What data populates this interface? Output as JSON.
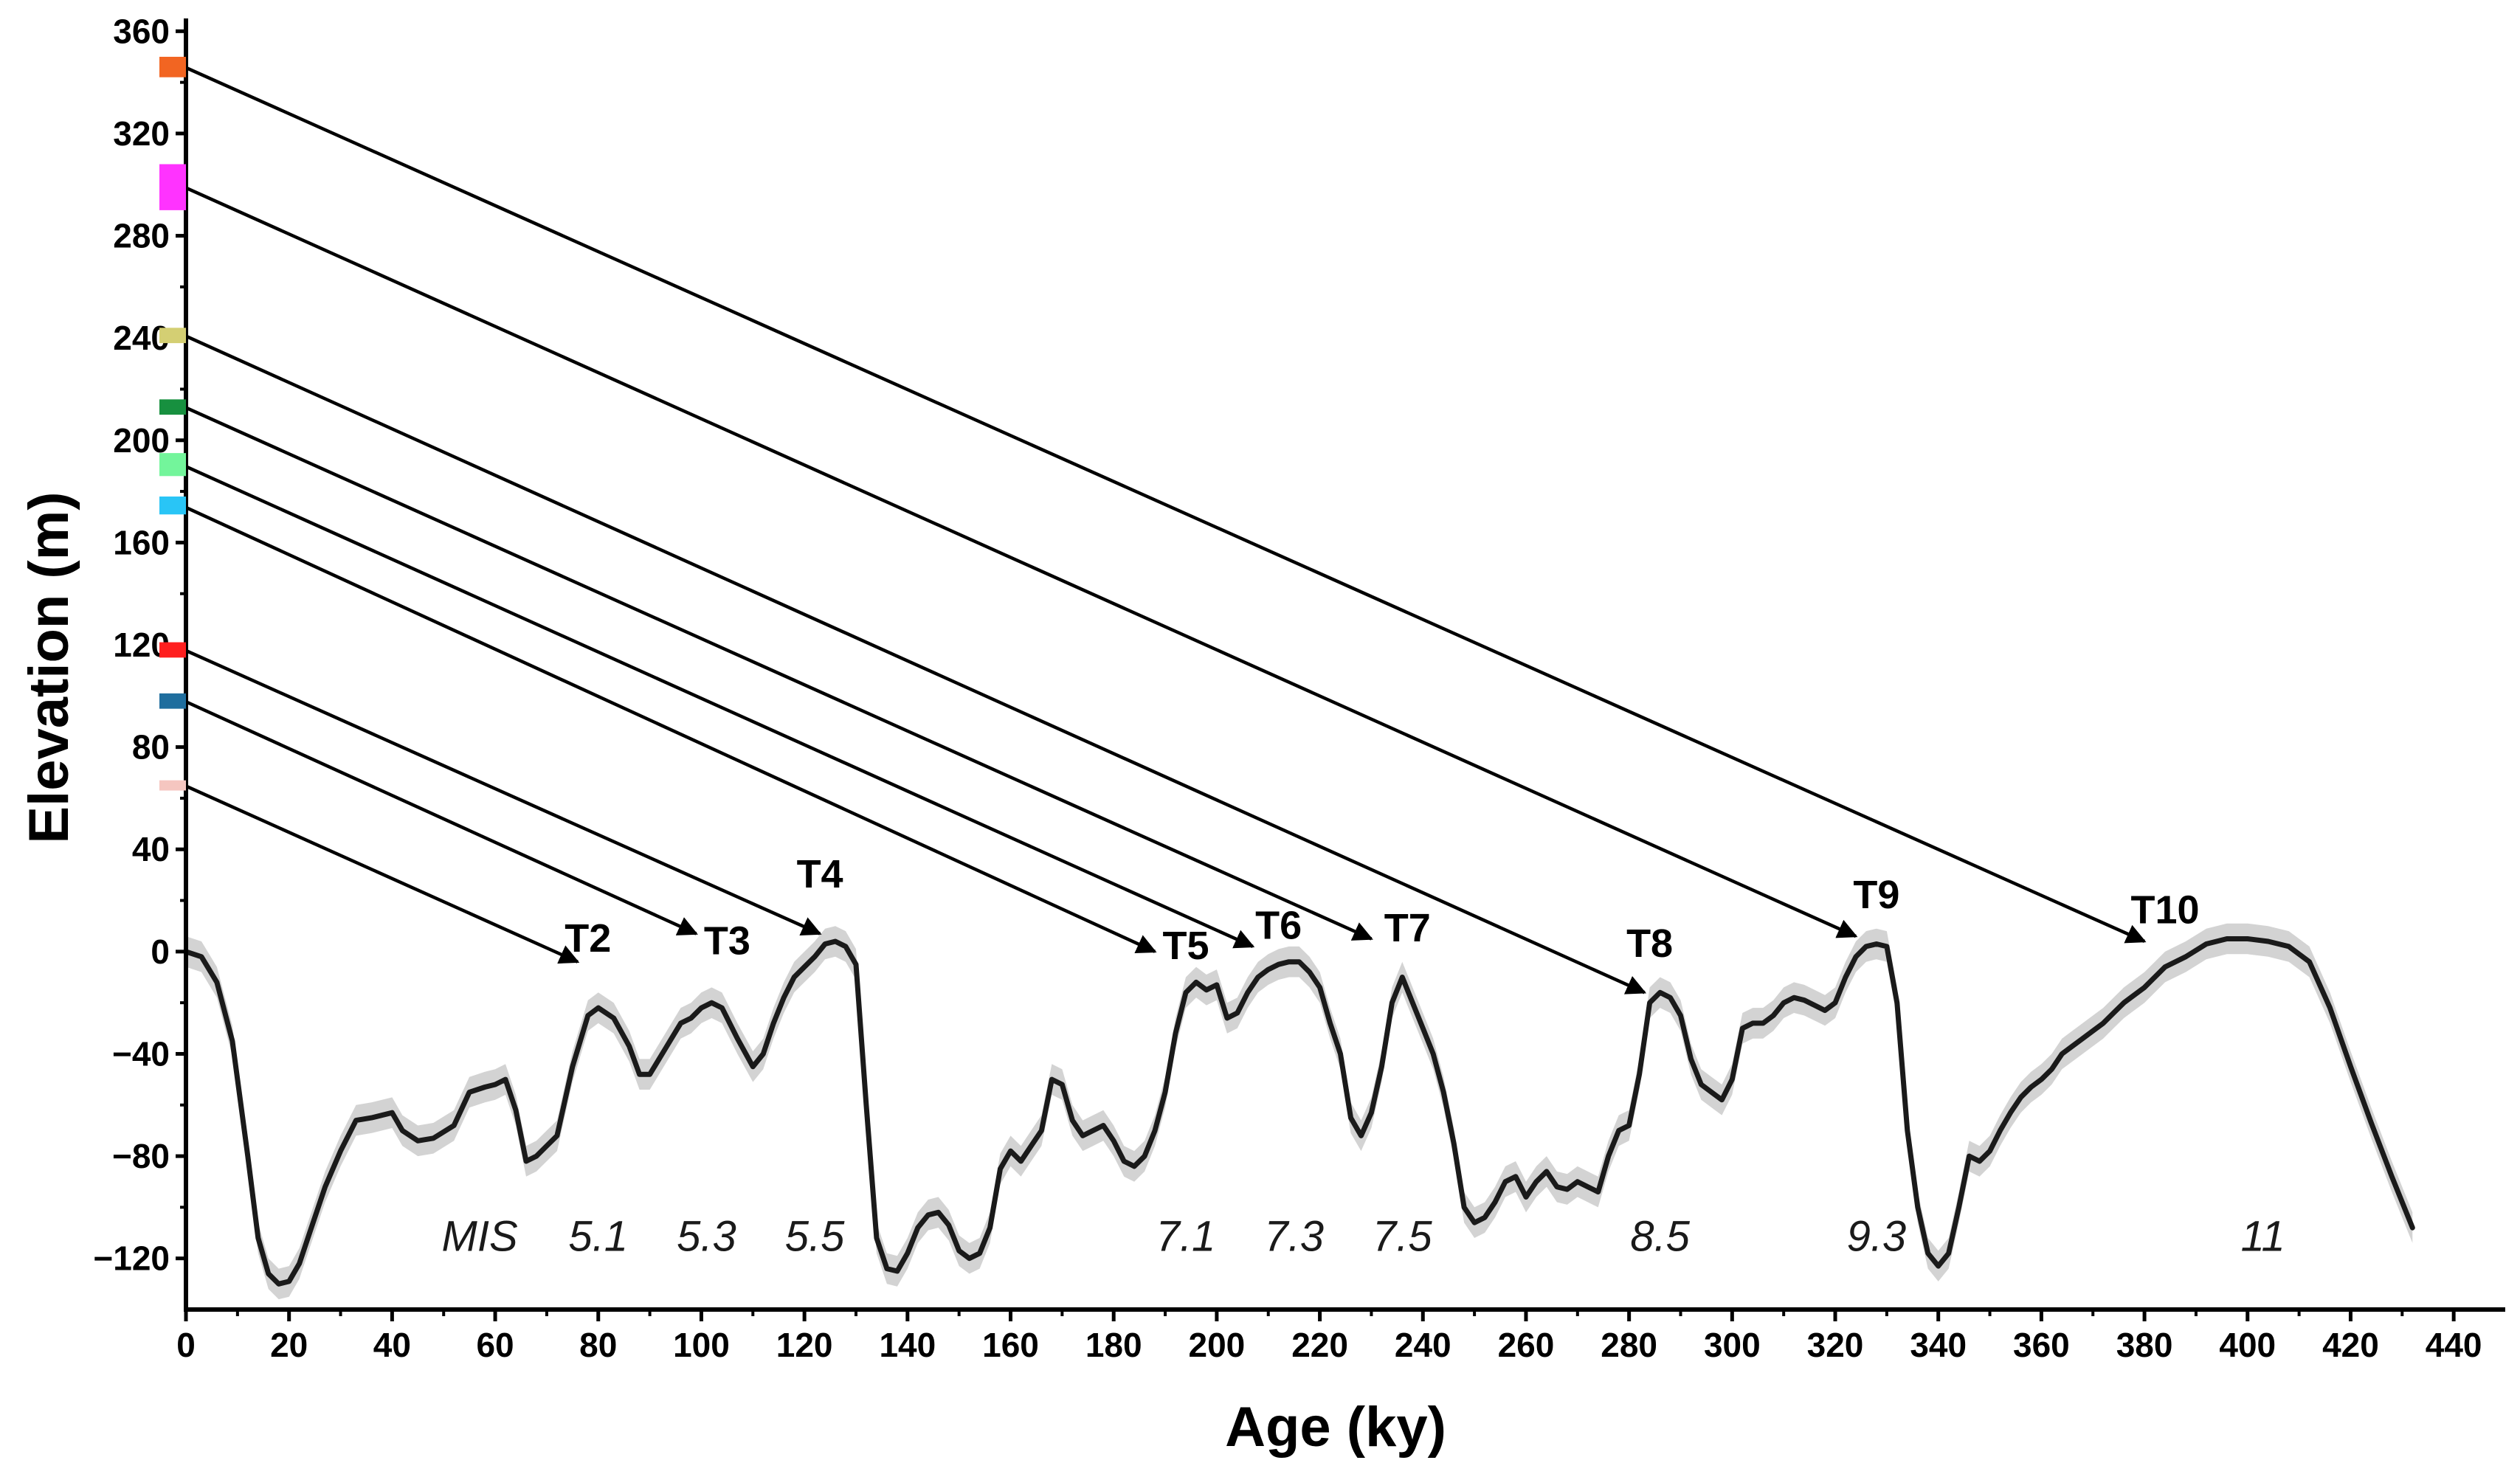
{
  "chart_data": {
    "type": "line",
    "title": "",
    "xlabel": "Age (ky)",
    "ylabel": "Elevation (m)",
    "xlim": [
      0,
      450
    ],
    "ylim": [
      -140,
      365
    ],
    "xticks": [
      0,
      20,
      40,
      60,
      80,
      100,
      120,
      140,
      160,
      180,
      200,
      220,
      240,
      260,
      280,
      300,
      320,
      340,
      360,
      380,
      400,
      420,
      440
    ],
    "yticks": [
      -120,
      -80,
      -40,
      0,
      40,
      80,
      120,
      160,
      200,
      240,
      280,
      320,
      360
    ],
    "ytick_labels": [
      "−120",
      "−80",
      "−40",
      "0",
      "40",
      "80",
      "120",
      "160",
      "200",
      "240",
      "280",
      "320",
      "360"
    ],
    "sea_level_curve": {
      "name": "Sea level",
      "color": "#1a1a1a",
      "x": [
        0,
        3,
        6,
        9,
        12,
        14,
        16,
        18,
        20,
        22,
        24,
        27,
        30,
        33,
        36,
        40,
        42,
        45,
        48,
        52,
        55,
        58,
        60,
        62,
        64,
        66,
        68,
        70,
        72,
        75,
        78,
        80,
        83,
        86,
        88,
        90,
        93,
        96,
        98,
        100,
        102,
        104,
        107,
        110,
        112,
        114,
        116,
        118,
        120,
        122,
        124,
        126,
        128,
        130,
        132,
        134,
        136,
        138,
        140,
        142,
        144,
        146,
        148,
        150,
        152,
        154,
        156,
        158,
        160,
        162,
        164,
        166,
        168,
        170,
        172,
        174,
        176,
        178,
        180,
        182,
        184,
        186,
        188,
        190,
        192,
        194,
        196,
        198,
        200,
        202,
        204,
        206,
        208,
        210,
        212,
        214,
        216,
        218,
        220,
        222,
        224,
        226,
        228,
        230,
        232,
        234,
        236,
        238,
        240,
        242,
        244,
        246,
        248,
        250,
        252,
        254,
        256,
        258,
        260,
        262,
        264,
        266,
        268,
        270,
        272,
        274,
        276,
        278,
        280,
        282,
        284,
        286,
        288,
        290,
        292,
        294,
        296,
        298,
        300,
        302,
        304,
        306,
        308,
        310,
        312,
        314,
        316,
        318,
        320,
        322,
        324,
        326,
        328,
        330,
        332,
        334,
        336,
        338,
        340,
        342,
        344,
        346,
        348,
        350,
        352,
        354,
        356,
        358,
        360,
        362,
        364,
        366,
        368,
        370,
        372,
        374,
        376,
        378,
        380,
        384,
        388,
        392,
        396,
        400,
        404,
        408,
        412,
        416,
        420,
        424,
        428,
        432
      ],
      "y": [
        0,
        -2,
        -12,
        -35,
        -80,
        -112,
        -126,
        -130,
        -129,
        -122,
        -110,
        -92,
        -78,
        -66,
        -65,
        -63,
        -70,
        -74,
        -73,
        -68,
        -55,
        -53,
        -52,
        -50,
        -62,
        -82,
        -80,
        -76,
        -72,
        -45,
        -25,
        -22,
        -26,
        -37,
        -48,
        -48,
        -38,
        -28,
        -26,
        -22,
        -20,
        -22,
        -34,
        -45,
        -40,
        -28,
        -18,
        -10,
        -6,
        -2,
        3,
        4,
        2,
        -5,
        -60,
        -112,
        -124,
        -125,
        -118,
        -108,
        -103,
        -102,
        -107,
        -117,
        -120,
        -118,
        -108,
        -85,
        -78,
        -82,
        -76,
        -70,
        -50,
        -52,
        -66,
        -72,
        -70,
        -68,
        -74,
        -82,
        -84,
        -80,
        -70,
        -55,
        -32,
        -16,
        -12,
        -15,
        -13,
        -26,
        -24,
        -16,
        -10,
        -7,
        -5,
        -4,
        -4,
        -8,
        -14,
        -28,
        -40,
        -65,
        -72,
        -63,
        -45,
        -20,
        -10,
        -20,
        -30,
        -40,
        -55,
        -75,
        -100,
        -106,
        -104,
        -98,
        -90,
        -88,
        -96,
        -90,
        -86,
        -92,
        -93,
        -90,
        -92,
        -94,
        -80,
        -70,
        -68,
        -48,
        -20,
        -16,
        -18,
        -25,
        -42,
        -52,
        -55,
        -58,
        -50,
        -30,
        -28,
        -28,
        -25,
        -20,
        -18,
        -19,
        -21,
        -23,
        -20,
        -10,
        -2,
        2,
        3,
        2,
        -20,
        -70,
        -100,
        -118,
        -123,
        -118,
        -100,
        -80,
        -82,
        -78,
        -70,
        -63,
        -57,
        -53,
        -50,
        -46,
        -40,
        -37,
        -34,
        -31,
        -28,
        -24,
        -20,
        -17,
        -14,
        -6,
        -2,
        3,
        5,
        5,
        4,
        2,
        -4,
        -22,
        -45,
        -67,
        -88,
        -108
      ]
    },
    "uncertainty_band": {
      "name": "Sea-level uncertainty",
      "color": "#d3d3d3",
      "half_width": 6
    },
    "terrace_markers": [
      {
        "elevation": 346,
        "elevation_low": 342,
        "elevation_high": 350,
        "color": "#f26522"
      },
      {
        "elevation": 299,
        "elevation_low": 290,
        "elevation_high": 308,
        "color": "#ff33ff"
      },
      {
        "elevation": 241,
        "elevation_low": 238,
        "elevation_high": 244,
        "color": "#d4cf73"
      },
      {
        "elevation": 213,
        "elevation_low": 210,
        "elevation_high": 216,
        "color": "#17903f"
      },
      {
        "elevation": 190,
        "elevation_low": 186,
        "elevation_high": 195,
        "color": "#73f59b"
      },
      {
        "elevation": 174,
        "elevation_low": 171,
        "elevation_high": 178,
        "color": "#29c5f6"
      },
      {
        "elevation": 118,
        "elevation_low": 115,
        "elevation_high": 121,
        "color": "#ff1f1f"
      },
      {
        "elevation": 98,
        "elevation_low": 95,
        "elevation_high": 101,
        "color": "#1f6e9e"
      },
      {
        "elevation": 65,
        "elevation_low": 63,
        "elevation_high": 67,
        "color": "#f5c6c0"
      }
    ],
    "correlation_arrows": [
      {
        "from_elevation": 346,
        "to_age": 380,
        "to_elevation": 4
      },
      {
        "from_elevation": 299,
        "to_age": 324,
        "to_elevation": 6
      },
      {
        "from_elevation": 241,
        "to_age": 283,
        "to_elevation": -16
      },
      {
        "from_elevation": 213,
        "to_age": 230,
        "to_elevation": 5
      },
      {
        "from_elevation": 190,
        "to_age": 207,
        "to_elevation": 2
      },
      {
        "from_elevation": 174,
        "to_age": 188,
        "to_elevation": 0
      },
      {
        "from_elevation": 118,
        "to_age": 123,
        "to_elevation": 7
      },
      {
        "from_elevation": 98,
        "to_age": 99,
        "to_elevation": 7
      },
      {
        "from_elevation": 65,
        "to_age": 76,
        "to_elevation": -4
      }
    ],
    "terrace_labels": [
      {
        "text": "T2",
        "age": 78,
        "elevation": 0
      },
      {
        "text": "T3",
        "age": 105,
        "elevation": -1
      },
      {
        "text": "T4",
        "age": 123,
        "elevation": 25
      },
      {
        "text": "T5",
        "age": 194,
        "elevation": -3
      },
      {
        "text": "T6",
        "age": 212,
        "elevation": 5
      },
      {
        "text": "T7",
        "age": 237,
        "elevation": 4
      },
      {
        "text": "T8",
        "age": 284,
        "elevation": -2
      },
      {
        "text": "T9",
        "age": 328,
        "elevation": 17
      },
      {
        "text": "T10",
        "age": 384,
        "elevation": 11
      }
    ],
    "mis_labels": [
      {
        "text": "MIS",
        "age": 57
      },
      {
        "text": "5.1",
        "age": 80
      },
      {
        "text": "5.3",
        "age": 101
      },
      {
        "text": "5.5",
        "age": 122
      },
      {
        "text": "7.1",
        "age": 194
      },
      {
        "text": "7.3",
        "age": 215
      },
      {
        "text": "7.5",
        "age": 236
      },
      {
        "text": "8.5",
        "age": 286
      },
      {
        "text": "9.3",
        "age": 328
      },
      {
        "text": "11",
        "age": 403
      }
    ],
    "mis_label_elevation": -117
  }
}
